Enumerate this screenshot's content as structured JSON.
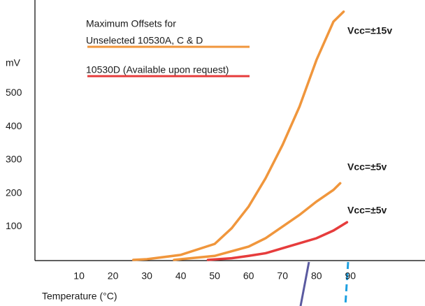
{
  "chart_data": {
    "type": "line",
    "y_label": "mV",
    "x_label": "Temperature (°C)",
    "xlim": [
      -3,
      112
    ],
    "ylim": [
      0,
      780
    ],
    "xticks": [
      10,
      20,
      30,
      40,
      50,
      60,
      70,
      80,
      90
    ],
    "yticks": [
      100,
      200,
      300,
      400,
      500
    ],
    "legend": [
      {
        "lines": [
          "Maximum Offsets for",
          "Unselected 10530A, C & D"
        ],
        "color": "#f0963c"
      },
      {
        "lines": [
          "10530D (Available upon request)"
        ],
        "color": "#e63c3c"
      }
    ],
    "series": [
      {
        "name": "Vcc=±15v",
        "color": "#f0963c",
        "x": [
          26,
          30,
          40,
          50,
          55,
          60,
          65,
          70,
          75,
          80,
          85,
          88
        ],
        "values": [
          0,
          2,
          15,
          48,
          95,
          160,
          245,
          345,
          460,
          600,
          715,
          745
        ]
      },
      {
        "name": "Vcc=±5v",
        "color": "#f0963c",
        "x": [
          38,
          40,
          50,
          60,
          65,
          70,
          75,
          80,
          85,
          87
        ],
        "values": [
          0,
          2,
          12,
          40,
          65,
          100,
          135,
          175,
          210,
          230
        ]
      },
      {
        "name": "Vcc=±5v",
        "color": "#e63c3c",
        "x": [
          48,
          55,
          60,
          65,
          70,
          75,
          80,
          85,
          89
        ],
        "values": [
          0,
          5,
          12,
          20,
          35,
          50,
          65,
          88,
          113
        ]
      }
    ]
  }
}
